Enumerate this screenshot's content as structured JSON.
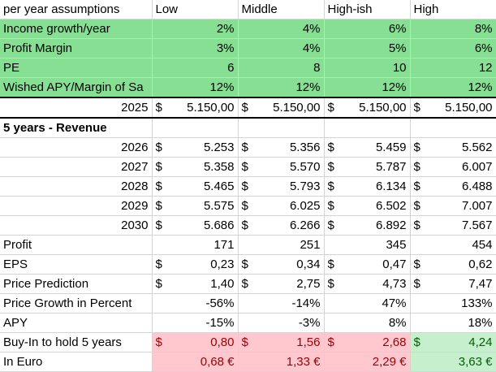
{
  "header": {
    "label": "per year assumptions",
    "cols": [
      "Low",
      "Middle",
      "High-ish",
      "High"
    ]
  },
  "assumptions": [
    {
      "label": "Income growth/year",
      "values": [
        "2%",
        "4%",
        "6%",
        "8%"
      ]
    },
    {
      "label": "Profit Margin",
      "values": [
        "3%",
        "4%",
        "5%",
        "6%"
      ]
    },
    {
      "label": "PE",
      "values": [
        "6",
        "8",
        "10",
        "12"
      ]
    },
    {
      "label": "Wished APY/Margin of Sa",
      "values": [
        "12%",
        "12%",
        "12%",
        "12%"
      ]
    }
  ],
  "base": {
    "year": "2025",
    "currency": "$",
    "values": [
      "5.150,00",
      "5.150,00",
      "5.150,00",
      "5.150,00"
    ]
  },
  "section_title": "5 years - Revenue",
  "revenue": [
    {
      "year": "2026",
      "values": [
        "5.253",
        "5.356",
        "5.459",
        "5.562"
      ]
    },
    {
      "year": "2027",
      "values": [
        "5.358",
        "5.570",
        "5.787",
        "6.007"
      ]
    },
    {
      "year": "2028",
      "values": [
        "5.465",
        "5.793",
        "6.134",
        "6.488"
      ]
    },
    {
      "year": "2029",
      "values": [
        "5.575",
        "6.025",
        "6.502",
        "7.007"
      ]
    },
    {
      "year": "2030",
      "values": [
        "5.686",
        "6.266",
        "6.892",
        "7.567"
      ]
    }
  ],
  "profit": {
    "label": "Profit",
    "values": [
      "171",
      "251",
      "345",
      "454"
    ]
  },
  "eps": {
    "label": "EPS",
    "values": [
      "0,23",
      "0,34",
      "0,47",
      "0,62"
    ]
  },
  "price_prediction": {
    "label": "Price Prediction",
    "values": [
      "1,40",
      "2,75",
      "4,73",
      "7,47"
    ]
  },
  "price_growth": {
    "label": "Price Growth in Percent",
    "values": [
      "-56%",
      "-14%",
      "47%",
      "133%"
    ]
  },
  "apy": {
    "label": "APY",
    "values": [
      "-15%",
      "-3%",
      "8%",
      "18%"
    ]
  },
  "buy_in": {
    "label": "Buy-In to hold 5 years",
    "values": [
      "0,80",
      "1,56",
      "2,68",
      "4,24"
    ]
  },
  "euro": {
    "label": "In Euro",
    "values": [
      "0,68 €",
      "1,33 €",
      "2,29 €",
      "3,63 €"
    ]
  },
  "colors": {
    "assumption_green": "#86df93",
    "negative_fill": "#ffc7ce",
    "negative_text": "#9c0006",
    "positive_fill": "#c6efce",
    "positive_text": "#006100"
  }
}
